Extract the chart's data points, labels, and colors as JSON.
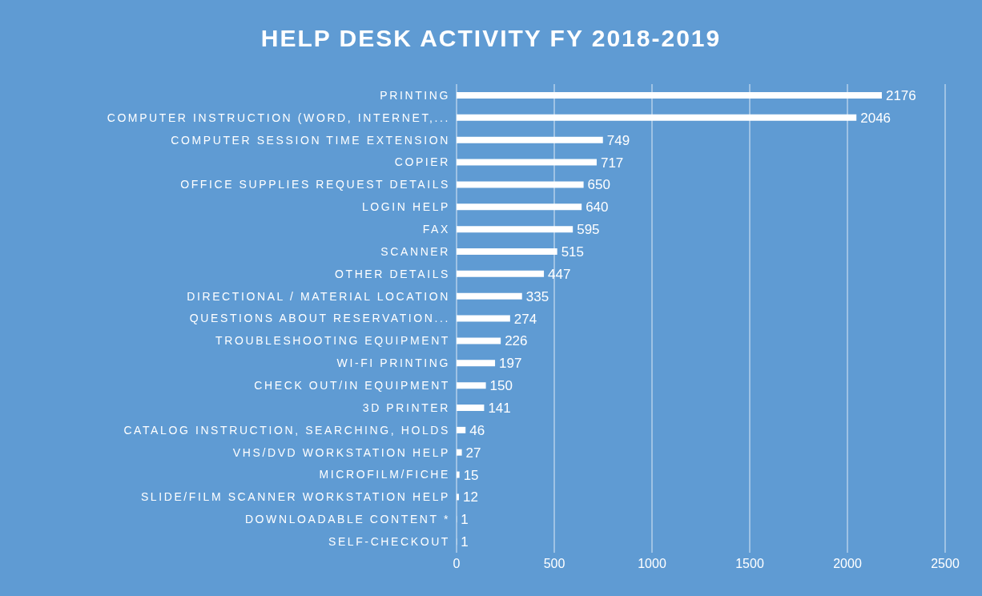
{
  "chart_data": {
    "type": "bar",
    "orientation": "horizontal",
    "title": "HELP DESK ACTIVITY FY 2018-2019",
    "categories": [
      "PRINTING",
      "COMPUTER INSTRUCTION (WORD, INTERNET,...",
      "COMPUTER SESSION TIME EXTENSION",
      "COPIER",
      "OFFICE SUPPLIES REQUEST  DETAILS",
      "LOGIN HELP",
      "FAX",
      "SCANNER",
      "OTHER  DETAILS",
      "DIRECTIONAL / MATERIAL LOCATION",
      "QUESTIONS ABOUT RESERVATION...",
      "TROUBLESHOOTING EQUIPMENT",
      "WI-FI PRINTING",
      "CHECK OUT/IN EQUIPMENT",
      "3D PRINTER",
      "CATALOG INSTRUCTION, SEARCHING, HOLDS",
      "VHS/DVD WORKSTATION HELP",
      "MICROFILM/FICHE",
      "SLIDE/FILM SCANNER WORKSTATION HELP",
      "DOWNLOADABLE CONTENT *",
      "SELF-CHECKOUT"
    ],
    "values": [
      2176,
      2046,
      749,
      717,
      650,
      640,
      595,
      515,
      447,
      335,
      274,
      226,
      197,
      150,
      141,
      46,
      27,
      15,
      12,
      1,
      1
    ],
    "color": "#ffffff",
    "xlim": [
      0,
      2500
    ],
    "xticks": [
      0,
      500,
      1000,
      1500,
      2000,
      2500
    ],
    "grid": "x",
    "data_labels": true
  }
}
